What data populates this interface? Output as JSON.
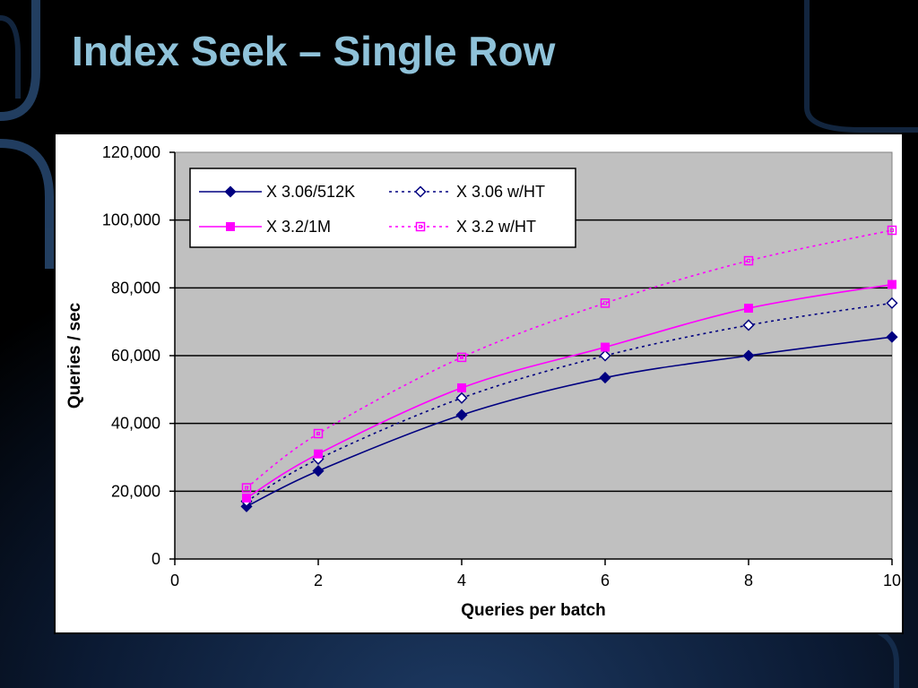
{
  "slide": {
    "title": "Index Seek – Single Row"
  },
  "chart_data": {
    "type": "line",
    "title": "",
    "xlabel": "Queries per batch",
    "ylabel": "Queries / sec",
    "xlim": [
      0,
      10
    ],
    "ylim": [
      0,
      120000
    ],
    "xticks": [
      0,
      2,
      4,
      6,
      8,
      10
    ],
    "xtick_labels": [
      "0",
      "2",
      "4",
      "6",
      "8",
      "10"
    ],
    "yticks": [
      0,
      20000,
      40000,
      60000,
      80000,
      100000,
      120000
    ],
    "ytick_labels": [
      "0",
      "20,000",
      "40,000",
      "60,000",
      "80,000",
      "100,000",
      "120,000"
    ],
    "grid": "horizontal",
    "legend_position": "top-left",
    "plot_background": "#c0c0c0",
    "series": [
      {
        "name": "X 3.06/512K",
        "color": "#000080",
        "line_style": "solid",
        "marker": "filled-diamond",
        "x": [
          1,
          2,
          4,
          6,
          8,
          10
        ],
        "y": [
          15500,
          26000,
          42500,
          53500,
          60000,
          65500
        ]
      },
      {
        "name": "X 3.06 w/HT",
        "color": "#000080",
        "line_style": "dotted",
        "marker": "open-diamond",
        "x": [
          1,
          2,
          4,
          6,
          8,
          10
        ],
        "y": [
          17000,
          29500,
          47500,
          60000,
          69000,
          75500
        ]
      },
      {
        "name": "X 3.2/1M",
        "color": "#ff00ff",
        "line_style": "solid",
        "marker": "filled-square",
        "x": [
          1,
          2,
          4,
          6,
          8,
          10
        ],
        "y": [
          18000,
          31000,
          50500,
          62500,
          74000,
          81000
        ]
      },
      {
        "name": "X 3.2 w/HT",
        "color": "#ff00ff",
        "line_style": "dotted",
        "marker": "open-square",
        "x": [
          1,
          2,
          4,
          6,
          8,
          10
        ],
        "y": [
          21000,
          37000,
          59500,
          75500,
          88000,
          97000
        ]
      }
    ]
  }
}
